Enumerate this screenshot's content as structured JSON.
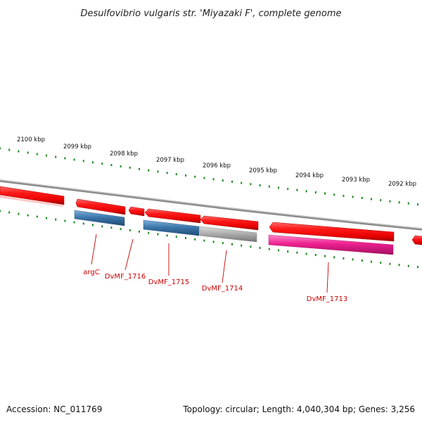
{
  "title": "Desulfovibrio vulgaris str. 'Miyazaki F', complete genome",
  "footer": {
    "accession": "Accession: NC_011769",
    "summary": "Topology: circular; Length: 4,040,304 bp; Genes: 3,256"
  },
  "tick_labels": [
    "2100 kbp",
    "2099 kbp",
    "2098 kbp",
    "2097 kbp",
    "2096 kbp",
    "2095 kbp",
    "2094 kbp",
    "2093 kbp",
    "2092 kbp"
  ],
  "gene_labels": [
    "argC",
    "DvMF_1716",
    "DvMF_1715",
    "DvMF_1714",
    "DvMF_1713"
  ],
  "colors": {
    "backbone": "#888888",
    "tick": "#1a8a1a",
    "cds": "#ee0000",
    "label": "#cc0000",
    "blue_feature": "#3d78ac",
    "grey_feature": "#aaaaaa",
    "pink_feature": "#ee2090"
  }
}
